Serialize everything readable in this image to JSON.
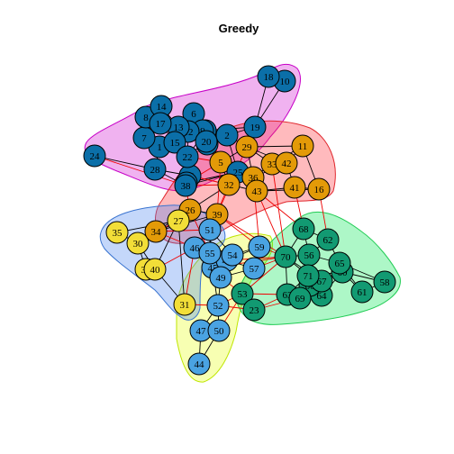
{
  "title": "Greedy",
  "colors": {
    "cluster_fill": [
      "#0b6fa8",
      "#e39a08",
      "#f2de38",
      "#4aa3e2",
      "#129a72"
    ],
    "hull_stroke": [
      "#c700c7",
      "#e0282e",
      "#bfe600",
      "#3a74d0",
      "#22cc55"
    ],
    "hull_fill": [
      "rgba(204,0,204,0.30)",
      "rgba(255,40,50,0.32)",
      "rgba(230,255,0,0.30)",
      "rgba(70,130,240,0.32)",
      "rgba(0,230,80,0.32)"
    ],
    "edge_intra": "#000000",
    "edge_inter": "#ee0000"
  },
  "nodes": [
    {
      "id": "1",
      "c": 0
    },
    {
      "id": "2",
      "c": 0
    },
    {
      "id": "3",
      "c": 0
    },
    {
      "id": "4",
      "c": 0
    },
    {
      "id": "5",
      "c": 1
    },
    {
      "id": "6",
      "c": 0
    },
    {
      "id": "7",
      "c": 0
    },
    {
      "id": "8",
      "c": 0
    },
    {
      "id": "9",
      "c": 0
    },
    {
      "id": "10",
      "c": 0
    },
    {
      "id": "11",
      "c": 1
    },
    {
      "id": "12",
      "c": 0
    },
    {
      "id": "13",
      "c": 0
    },
    {
      "id": "14",
      "c": 0
    },
    {
      "id": "15",
      "c": 0
    },
    {
      "id": "16",
      "c": 1
    },
    {
      "id": "17",
      "c": 0
    },
    {
      "id": "18",
      "c": 0
    },
    {
      "id": "19",
      "c": 0
    },
    {
      "id": "20",
      "c": 0
    },
    {
      "id": "21",
      "c": 0
    },
    {
      "id": "22",
      "c": 0
    },
    {
      "id": "23",
      "c": 0
    },
    {
      "id": "24",
      "c": 0
    },
    {
      "id": "25",
      "c": 0
    },
    {
      "id": "26",
      "c": 1
    },
    {
      "id": "27",
      "c": 2
    },
    {
      "id": "28",
      "c": 0
    },
    {
      "id": "29",
      "c": 1
    },
    {
      "id": "30",
      "c": 2
    },
    {
      "id": "31",
      "c": 2
    },
    {
      "id": "32",
      "c": 1
    },
    {
      "id": "33",
      "c": 1
    },
    {
      "id": "34",
      "c": 1
    },
    {
      "id": "35",
      "c": 2
    },
    {
      "id": "36",
      "c": 1
    },
    {
      "id": "37",
      "c": 2
    },
    {
      "id": "38",
      "c": 0
    },
    {
      "id": "39",
      "c": 1
    },
    {
      "id": "40",
      "c": 2
    },
    {
      "id": "41",
      "c": 1
    },
    {
      "id": "42",
      "c": 1
    },
    {
      "id": "43",
      "c": 1
    },
    {
      "id": "44",
      "c": 3
    },
    {
      "id": "45",
      "c": 3
    },
    {
      "id": "46",
      "c": 3
    },
    {
      "id": "47",
      "c": 3
    },
    {
      "id": "48",
      "c": 3
    },
    {
      "id": "49",
      "c": 3
    },
    {
      "id": "50",
      "c": 3
    },
    {
      "id": "51",
      "c": 3
    },
    {
      "id": "52",
      "c": 3
    },
    {
      "id": "53",
      "c": 4
    },
    {
      "id": "54",
      "c": 3
    },
    {
      "id": "55",
      "c": 3
    },
    {
      "id": "56",
      "c": 4
    },
    {
      "id": "57",
      "c": 3
    },
    {
      "id": "58",
      "c": 4
    },
    {
      "id": "59",
      "c": 3
    },
    {
      "id": "60",
      "c": 4
    },
    {
      "id": "61",
      "c": 4
    },
    {
      "id": "62",
      "c": 4
    },
    {
      "id": "63",
      "c": 4
    },
    {
      "id": "64",
      "c": 4
    },
    {
      "id": "65",
      "c": 4
    },
    {
      "id": "66",
      "c": 4
    },
    {
      "id": "67",
      "c": 4
    },
    {
      "id": "68",
      "c": 4
    },
    {
      "id": "69",
      "c": 4
    },
    {
      "id": "70",
      "c": 4
    },
    {
      "id": "71",
      "c": 4
    }
  ],
  "edges_intra": [
    [
      "24",
      "28"
    ],
    [
      "28",
      "1"
    ],
    [
      "28",
      "38"
    ],
    [
      "28",
      "21"
    ],
    [
      "1",
      "7"
    ],
    [
      "1",
      "15"
    ],
    [
      "1",
      "3"
    ],
    [
      "1",
      "13"
    ],
    [
      "7",
      "8"
    ],
    [
      "7",
      "17"
    ],
    [
      "8",
      "14"
    ],
    [
      "8",
      "17"
    ],
    [
      "14",
      "17"
    ],
    [
      "14",
      "13"
    ],
    [
      "17",
      "13"
    ],
    [
      "17",
      "15"
    ],
    [
      "13",
      "6"
    ],
    [
      "13",
      "12"
    ],
    [
      "6",
      "12"
    ],
    [
      "6",
      "9"
    ],
    [
      "12",
      "9"
    ],
    [
      "12",
      "20"
    ],
    [
      "9",
      "20"
    ],
    [
      "20",
      "2"
    ],
    [
      "2",
      "19"
    ],
    [
      "12",
      "19"
    ],
    [
      "19",
      "18"
    ],
    [
      "19",
      "10"
    ],
    [
      "18",
      "10"
    ],
    [
      "2",
      "4"
    ],
    [
      "4",
      "20"
    ],
    [
      "4",
      "25"
    ],
    [
      "22",
      "21"
    ],
    [
      "22",
      "23"
    ],
    [
      "21",
      "23"
    ],
    [
      "21",
      "38"
    ],
    [
      "23",
      "38"
    ],
    [
      "15",
      "22"
    ],
    [
      "3",
      "15"
    ],
    [
      "3",
      "22"
    ],
    [
      "12",
      "22"
    ],
    [
      "13",
      "3"
    ],
    [
      "9",
      "3"
    ],
    [
      "20",
      "22"
    ],
    [
      "2",
      "25"
    ],
    [
      "25",
      "38"
    ],
    [
      "25",
      "23"
    ],
    [
      "15",
      "12"
    ],
    [
      "5",
      "29"
    ],
    [
      "29",
      "36"
    ],
    [
      "29",
      "33"
    ],
    [
      "29",
      "11"
    ],
    [
      "11",
      "42"
    ],
    [
      "11",
      "33"
    ],
    [
      "42",
      "33"
    ],
    [
      "42",
      "36"
    ],
    [
      "33",
      "36"
    ],
    [
      "36",
      "43"
    ],
    [
      "36",
      "32"
    ],
    [
      "43",
      "32"
    ],
    [
      "43",
      "41"
    ],
    [
      "41",
      "16"
    ],
    [
      "41",
      "42"
    ],
    [
      "16",
      "11"
    ],
    [
      "5",
      "32"
    ],
    [
      "5",
      "36"
    ],
    [
      "26",
      "39"
    ],
    [
      "26",
      "34"
    ],
    [
      "34",
      "39"
    ],
    [
      "29",
      "42"
    ],
    [
      "32",
      "26"
    ],
    [
      "16",
      "43"
    ],
    [
      "35",
      "30"
    ],
    [
      "30",
      "27"
    ],
    [
      "30",
      "37"
    ],
    [
      "30",
      "40"
    ],
    [
      "37",
      "40"
    ],
    [
      "27",
      "40"
    ],
    [
      "27",
      "31"
    ],
    [
      "40",
      "31"
    ],
    [
      "35",
      "27"
    ],
    [
      "51",
      "55"
    ],
    [
      "51",
      "45"
    ],
    [
      "51",
      "54"
    ],
    [
      "55",
      "46"
    ],
    [
      "55",
      "45"
    ],
    [
      "46",
      "45"
    ],
    [
      "45",
      "49"
    ],
    [
      "49",
      "54"
    ],
    [
      "49",
      "52"
    ],
    [
      "52",
      "50"
    ],
    [
      "52",
      "47"
    ],
    [
      "47",
      "50"
    ],
    [
      "47",
      "44"
    ],
    [
      "50",
      "44"
    ],
    [
      "54",
      "48"
    ],
    [
      "48",
      "49"
    ],
    [
      "57",
      "49"
    ],
    [
      "59",
      "54"
    ],
    [
      "57",
      "48"
    ],
    [
      "55",
      "54"
    ],
    [
      "52",
      "45"
    ],
    [
      "46",
      "51"
    ],
    [
      "48",
      "59"
    ],
    [
      "68",
      "62"
    ],
    [
      "68",
      "56"
    ],
    [
      "68",
      "70"
    ],
    [
      "62",
      "56"
    ],
    [
      "62",
      "65"
    ],
    [
      "70",
      "56"
    ],
    [
      "70",
      "71"
    ],
    [
      "70",
      "67"
    ],
    [
      "70",
      "63"
    ],
    [
      "71",
      "67"
    ],
    [
      "71",
      "60"
    ],
    [
      "71",
      "56"
    ],
    [
      "56",
      "65"
    ],
    [
      "65",
      "60"
    ],
    [
      "65",
      "61"
    ],
    [
      "65",
      "58"
    ],
    [
      "60",
      "61"
    ],
    [
      "61",
      "58"
    ],
    [
      "60",
      "58"
    ],
    [
      "67",
      "64"
    ],
    [
      "67",
      "60"
    ],
    [
      "64",
      "60"
    ],
    [
      "64",
      "69"
    ],
    [
      "69",
      "63"
    ],
    [
      "63",
      "66"
    ],
    [
      "66",
      "64"
    ],
    [
      "69",
      "71"
    ],
    [
      "63",
      "71"
    ],
    [
      "53",
      "23a"
    ]
  ],
  "edges_inter": [
    [
      "21",
      "32"
    ],
    [
      "38",
      "26"
    ],
    [
      "38",
      "32"
    ],
    [
      "23",
      "5"
    ],
    [
      "22",
      "5"
    ],
    [
      "25",
      "36"
    ],
    [
      "19",
      "29"
    ],
    [
      "2",
      "29"
    ],
    [
      "20",
      "5"
    ],
    [
      "4",
      "36"
    ],
    [
      "26",
      "27"
    ],
    [
      "34",
      "27"
    ],
    [
      "34",
      "46"
    ],
    [
      "39",
      "51"
    ],
    [
      "39",
      "46"
    ],
    [
      "26",
      "55"
    ],
    [
      "39",
      "70"
    ],
    [
      "43",
      "68"
    ],
    [
      "43",
      "70"
    ],
    [
      "41",
      "68"
    ],
    [
      "16",
      "62"
    ],
    [
      "36",
      "59"
    ],
    [
      "32",
      "51"
    ],
    [
      "39",
      "59"
    ],
    [
      "31",
      "52"
    ],
    [
      "31",
      "46"
    ],
    [
      "40",
      "46"
    ],
    [
      "52",
      "53"
    ],
    [
      "52",
      "23b"
    ],
    [
      "49",
      "53"
    ],
    [
      "50",
      "53"
    ],
    [
      "57",
      "70"
    ],
    [
      "59",
      "70"
    ],
    [
      "53",
      "70"
    ],
    [
      "53",
      "63"
    ],
    [
      "23b",
      "63"
    ],
    [
      "23b",
      "69"
    ],
    [
      "45",
      "70"
    ],
    [
      "48",
      "70"
    ],
    [
      "34",
      "51"
    ],
    [
      "24",
      "38"
    ],
    [
      "33",
      "70"
    ],
    [
      "29",
      "39"
    ],
    [
      "5",
      "39"
    ]
  ]
}
